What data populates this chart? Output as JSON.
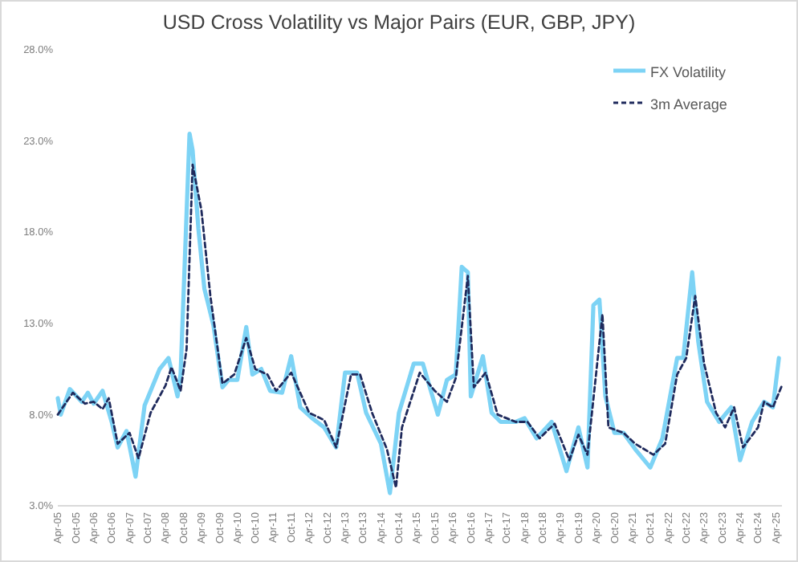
{
  "chart_data": {
    "type": "line",
    "title": "USD Cross Volatility vs Major Pairs (EUR, GBP, JPY)",
    "xlim": [
      "2005-04",
      "2025-06"
    ],
    "xticks": [
      {
        "value": "2005-04",
        "label": "Apr-05"
      },
      {
        "value": "2005-10",
        "label": "Oct-05"
      },
      {
        "value": "2006-04",
        "label": "Apr-06"
      },
      {
        "value": "2006-10",
        "label": "Oct-06"
      },
      {
        "value": "2007-04",
        "label": "Apr-07"
      },
      {
        "value": "2007-10",
        "label": "Oct-07"
      },
      {
        "value": "2008-04",
        "label": "Apr-08"
      },
      {
        "value": "2008-10",
        "label": "Oct-08"
      },
      {
        "value": "2009-04",
        "label": "Apr-09"
      },
      {
        "value": "2009-10",
        "label": "Oct-09"
      },
      {
        "value": "2010-04",
        "label": "Apr-10"
      },
      {
        "value": "2010-10",
        "label": "Oct-10"
      },
      {
        "value": "2011-04",
        "label": "Apr-11"
      },
      {
        "value": "2011-10",
        "label": "Oct-11"
      },
      {
        "value": "2012-04",
        "label": "Apr-12"
      },
      {
        "value": "2012-10",
        "label": "Oct-12"
      },
      {
        "value": "2013-04",
        "label": "Apr-13"
      },
      {
        "value": "2013-10",
        "label": "Oct-13"
      },
      {
        "value": "2014-04",
        "label": "Apr-14"
      },
      {
        "value": "2014-10",
        "label": "Oct-14"
      },
      {
        "value": "2015-04",
        "label": "Apr-15"
      },
      {
        "value": "2015-10",
        "label": "Oct-15"
      },
      {
        "value": "2016-04",
        "label": "Apr-16"
      },
      {
        "value": "2016-10",
        "label": "Oct-16"
      },
      {
        "value": "2017-04",
        "label": "Apr-17"
      },
      {
        "value": "2017-10",
        "label": "Oct-17"
      },
      {
        "value": "2018-04",
        "label": "Apr-18"
      },
      {
        "value": "2018-10",
        "label": "Oct-18"
      },
      {
        "value": "2019-04",
        "label": "Apr-19"
      },
      {
        "value": "2019-10",
        "label": "Oct-19"
      },
      {
        "value": "2020-04",
        "label": "Apr-20"
      },
      {
        "value": "2020-10",
        "label": "Oct-20"
      },
      {
        "value": "2021-04",
        "label": "Apr-21"
      },
      {
        "value": "2021-10",
        "label": "Oct-21"
      },
      {
        "value": "2022-04",
        "label": "Apr-22"
      },
      {
        "value": "2022-10",
        "label": "Oct-22"
      },
      {
        "value": "2023-04",
        "label": "Apr-23"
      },
      {
        "value": "2023-10",
        "label": "Oct-23"
      },
      {
        "value": "2024-04",
        "label": "Apr-24"
      },
      {
        "value": "2024-10",
        "label": "Oct-24"
      },
      {
        "value": "2025-04",
        "label": "Apr-25"
      }
    ],
    "ylim": [
      3,
      28
    ],
    "yticks": [
      {
        "value": 3,
        "label": "3.0%"
      },
      {
        "value": 8,
        "label": "8.0%"
      },
      {
        "value": 13,
        "label": "13.0%"
      },
      {
        "value": 18,
        "label": "18.0%"
      },
      {
        "value": 23,
        "label": "23.0%"
      },
      {
        "value": 28,
        "label": "28.0%"
      }
    ],
    "grid": false,
    "legend": "top right",
    "series": [
      {
        "name": "FX Volatility",
        "color": "#7dd3f5",
        "line_style": "solid",
        "x": [
          "2005-04",
          "2005-05",
          "2005-08",
          "2005-12",
          "2006-02",
          "2006-04",
          "2006-07",
          "2006-10",
          "2006-12",
          "2007-03",
          "2007-06",
          "2007-09",
          "2008-02",
          "2008-05",
          "2008-08",
          "2008-09",
          "2008-12",
          "2009-01",
          "2009-03",
          "2009-05",
          "2009-08",
          "2009-11",
          "2010-01",
          "2010-04",
          "2010-07",
          "2010-09",
          "2010-12",
          "2011-03",
          "2011-07",
          "2011-10",
          "2012-01",
          "2012-05",
          "2012-09",
          "2013-01",
          "2013-04",
          "2013-08",
          "2013-11",
          "2014-04",
          "2014-07",
          "2014-10",
          "2015-03",
          "2015-06",
          "2015-11",
          "2016-02",
          "2016-05",
          "2016-07",
          "2016-09",
          "2016-10",
          "2017-02",
          "2017-05",
          "2017-08",
          "2018-01",
          "2018-04",
          "2018-08",
          "2019-01",
          "2019-06",
          "2019-10",
          "2020-01",
          "2020-03",
          "2020-05",
          "2020-07",
          "2020-10",
          "2021-01",
          "2021-05",
          "2021-10",
          "2022-02",
          "2022-07",
          "2022-09",
          "2022-12",
          "2023-02",
          "2023-05",
          "2023-09",
          "2024-01",
          "2024-04",
          "2024-08",
          "2024-12",
          "2025-03",
          "2025-05"
        ],
        "values": [
          8.9,
          8.0,
          9.4,
          8.7,
          9.2,
          8.6,
          9.3,
          7.6,
          6.2,
          7.1,
          4.6,
          8.5,
          10.5,
          11.1,
          9.0,
          10.2,
          23.4,
          22.5,
          18.2,
          14.9,
          12.9,
          9.5,
          9.9,
          9.9,
          12.8,
          10.2,
          10.5,
          9.3,
          9.2,
          11.2,
          8.4,
          7.8,
          7.3,
          6.2,
          10.3,
          10.3,
          8.1,
          6.4,
          3.7,
          8.1,
          10.8,
          10.8,
          8.0,
          9.9,
          10.2,
          16.1,
          15.8,
          9.0,
          11.2,
          8.1,
          7.6,
          7.6,
          7.8,
          6.7,
          7.6,
          4.9,
          7.3,
          5.1,
          14.0,
          14.3,
          9.0,
          7.0,
          7.0,
          6.1,
          5.1,
          6.7,
          11.1,
          11.1,
          15.8,
          12.0,
          8.7,
          7.6,
          8.4,
          5.5,
          7.6,
          8.7,
          8.4,
          11.1
        ]
      },
      {
        "name": "3m Average",
        "color": "#1f2a5c",
        "line_style": "dashed",
        "x": [
          "2005-04",
          "2005-09",
          "2006-01",
          "2006-04",
          "2006-07",
          "2006-09",
          "2006-12",
          "2007-04",
          "2007-07",
          "2007-11",
          "2008-04",
          "2008-06",
          "2008-09",
          "2008-11",
          "2009-01",
          "2009-04",
          "2009-07",
          "2009-11",
          "2010-03",
          "2010-07",
          "2010-10",
          "2011-02",
          "2011-05",
          "2011-10",
          "2012-04",
          "2012-09",
          "2013-01",
          "2013-06",
          "2013-09",
          "2014-01",
          "2014-06",
          "2014-09",
          "2014-11",
          "2015-05",
          "2015-10",
          "2016-02",
          "2016-05",
          "2016-09",
          "2016-11",
          "2017-03",
          "2017-07",
          "2018-01",
          "2018-05",
          "2018-09",
          "2019-02",
          "2019-07",
          "2019-10",
          "2020-01",
          "2020-06",
          "2020-08",
          "2021-01",
          "2021-05",
          "2021-11",
          "2022-03",
          "2022-07",
          "2022-10",
          "2023-01",
          "2023-04",
          "2023-08",
          "2023-11",
          "2024-02",
          "2024-05",
          "2024-10",
          "2024-12",
          "2025-03",
          "2025-06"
        ],
        "values": [
          8.0,
          9.2,
          8.6,
          8.7,
          8.3,
          8.9,
          6.4,
          7.0,
          5.6,
          8.1,
          9.6,
          10.6,
          9.3,
          11.6,
          21.7,
          19.2,
          14.5,
          9.7,
          10.2,
          12.2,
          10.5,
          10.2,
          9.3,
          10.3,
          8.1,
          7.7,
          6.2,
          10.2,
          10.2,
          8.1,
          6.1,
          4.0,
          7.3,
          10.3,
          9.3,
          8.7,
          10.0,
          15.6,
          9.5,
          10.3,
          8.0,
          7.6,
          7.6,
          6.7,
          7.5,
          5.5,
          6.9,
          5.8,
          13.5,
          7.3,
          7.0,
          6.4,
          5.8,
          6.4,
          10.2,
          11.1,
          14.5,
          10.8,
          8.1,
          7.3,
          8.4,
          6.2,
          7.3,
          8.7,
          8.4,
          9.6
        ]
      }
    ]
  }
}
